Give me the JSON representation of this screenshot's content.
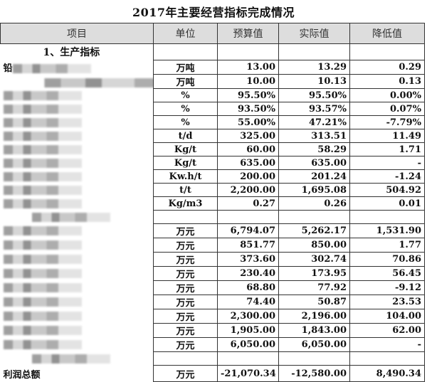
{
  "title": "2017年主要经营指标完成情况",
  "columns": [
    "项目",
    "单位",
    "预算值",
    "实际值",
    "降低值"
  ],
  "section1": "1、生产指标",
  "rows": [
    {
      "item": "铅",
      "unit": "万吨",
      "budget": "13.00",
      "actual": "13.29",
      "reduction": "0.29"
    },
    {
      "item": "量",
      "unit": "万吨",
      "budget": "10.00",
      "actual": "10.13",
      "reduction": "0.13"
    },
    {
      "item": "",
      "unit": "%",
      "budget": "95.50%",
      "actual": "95.50%",
      "reduction": "0.00%"
    },
    {
      "item": "",
      "unit": "%",
      "budget": "93.50%",
      "actual": "93.57%",
      "reduction": "0.07%"
    },
    {
      "item": "",
      "unit": "%",
      "budget": "55.00%",
      "actual": "47.21%",
      "reduction": "-7.79%"
    },
    {
      "item": "",
      "unit": "t/d",
      "budget": "325.00",
      "actual": "313.51",
      "reduction": "11.49"
    },
    {
      "item": "",
      "unit": "Kg/t",
      "budget": "60.00",
      "actual": "58.29",
      "reduction": "1.71"
    },
    {
      "item": "",
      "unit": "Kg/t",
      "budget": "635.00",
      "actual": "635.00",
      "reduction": "-"
    },
    {
      "item": "",
      "unit": "Kw.h/t",
      "budget": "200.00",
      "actual": "201.24",
      "reduction": "-1.24"
    },
    {
      "item": "",
      "unit": "t/t",
      "budget": "2,200.00",
      "actual": "1,695.08",
      "reduction": "504.92"
    },
    {
      "item": "",
      "unit": "Kg/m3",
      "budget": "0.27",
      "actual": "0.26",
      "reduction": "0.01"
    },
    {
      "item": "",
      "unit": "",
      "budget": "",
      "actual": "",
      "reduction": ""
    },
    {
      "item": "",
      "unit": "万元",
      "budget": "6,794.07",
      "actual": "5,262.17",
      "reduction": "1,531.90"
    },
    {
      "item": "",
      "unit": "万元",
      "budget": "851.77",
      "actual": "850.00",
      "reduction": "1.77"
    },
    {
      "item": "",
      "unit": "万元",
      "budget": "373.60",
      "actual": "302.74",
      "reduction": "70.86"
    },
    {
      "item": "",
      "unit": "万元",
      "budget": "230.40",
      "actual": "173.95",
      "reduction": "56.45"
    },
    {
      "item": "",
      "unit": "万元",
      "budget": "68.80",
      "actual": "77.92",
      "reduction": "-9.12"
    },
    {
      "item": "",
      "unit": "万元",
      "budget": "74.40",
      "actual": "50.87",
      "reduction": "23.53"
    },
    {
      "item": "",
      "unit": "万元",
      "budget": "2,300.00",
      "actual": "2,196.00",
      "reduction": "104.00"
    },
    {
      "item": "",
      "unit": "万元",
      "budget": "1,905.00",
      "actual": "1,843.00",
      "reduction": "62.00"
    },
    {
      "item": "",
      "unit": "万元",
      "budget": "6,050.00",
      "actual": "6,050.00",
      "reduction": "-"
    },
    {
      "item": "",
      "unit": "",
      "budget": "",
      "actual": "",
      "reduction": ""
    }
  ],
  "total": {
    "item": "利润总额",
    "unit": "万元",
    "budget": "-21,070.34",
    "actual": "-12,580.00",
    "reduction": "8,490.34"
  }
}
